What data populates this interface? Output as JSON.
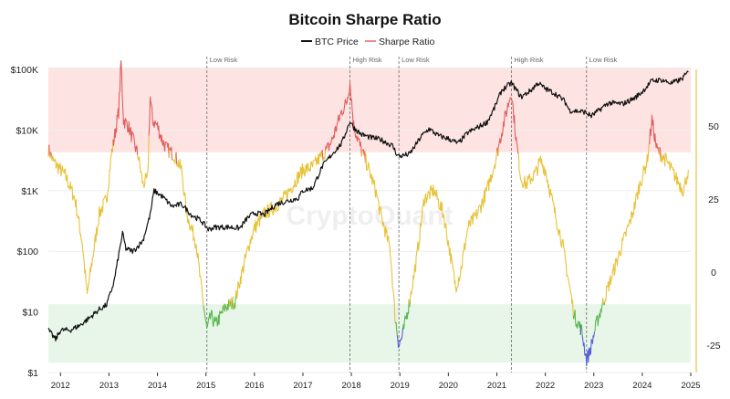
{
  "chart_data": {
    "type": "line",
    "title": "Bitcoin Sharpe Ratio",
    "watermark": "CryptoQuant",
    "legend": [
      {
        "name": "BTC Price",
        "color": "#111111"
      },
      {
        "name": "Sharpe Ratio",
        "color": "#ec8e8e"
      }
    ],
    "x_ticks": [
      "2012",
      "2013",
      "2014",
      "2015",
      "2016",
      "2017",
      "2018",
      "2019",
      "2020",
      "2021",
      "2022",
      "2023",
      "2024",
      "2025"
    ],
    "y_left": {
      "scale": "log",
      "range": [
        1,
        100000
      ],
      "ticks": [
        {
          "value": 1,
          "label": "$1"
        },
        {
          "value": 10,
          "label": "$10"
        },
        {
          "value": 100,
          "label": "$100"
        },
        {
          "value": 1000,
          "label": "$1K"
        },
        {
          "value": 10000,
          "label": "$10K"
        },
        {
          "value": 100000,
          "label": "$100K"
        }
      ]
    },
    "y_right": {
      "scale": "linear",
      "range": [
        -32,
        70
      ],
      "ticks": [
        {
          "value": 50,
          "label": "50"
        },
        {
          "value": 25,
          "label": "25"
        },
        {
          "value": 0,
          "label": "0"
        },
        {
          "value": -25,
          "label": "-25"
        }
      ]
    },
    "zones": {
      "high_risk": {
        "from": 41,
        "to": 70,
        "color": "#fde4e2"
      },
      "low_risk": {
        "from": -31,
        "to": -11,
        "color": "#e8f6ea"
      }
    },
    "line_colors": {
      "price": "#111111",
      "high": "#e05d5d",
      "mid": "#e8c238",
      "low": "#5bb84f",
      "extreme": "#5660d6"
    },
    "annotations": [
      {
        "x": 2015.02,
        "label": "Low Risk"
      },
      {
        "x": 2017.97,
        "label": "High Risk"
      },
      {
        "x": 2018.98,
        "label": "Low Risk"
      },
      {
        "x": 2021.3,
        "label": "High Risk"
      },
      {
        "x": 2022.85,
        "label": "Low Risk"
      }
    ],
    "series": [
      {
        "name": "BTC Price",
        "x": [
          2011.75,
          2011.9,
          2012.0,
          2012.2,
          2012.4,
          2012.6,
          2012.8,
          2012.95,
          2013.1,
          2013.28,
          2013.35,
          2013.5,
          2013.7,
          2013.85,
          2013.93,
          2014.1,
          2014.3,
          2014.5,
          2014.7,
          2014.9,
          2015.05,
          2015.2,
          2015.5,
          2015.7,
          2015.85,
          2016.0,
          2016.2,
          2016.45,
          2016.6,
          2016.9,
          2017.0,
          2017.2,
          2017.4,
          2017.6,
          2017.8,
          2017.97,
          2018.05,
          2018.2,
          2018.4,
          2018.6,
          2018.85,
          2018.95,
          2019.0,
          2019.2,
          2019.45,
          2019.6,
          2019.8,
          2020.0,
          2020.2,
          2020.4,
          2020.6,
          2020.8,
          2020.95,
          2021.1,
          2021.3,
          2021.5,
          2021.7,
          2021.85,
          2022.0,
          2022.2,
          2022.4,
          2022.5,
          2022.8,
          2022.95,
          2023.1,
          2023.3,
          2023.6,
          2023.85,
          2024.0,
          2024.2,
          2024.4,
          2024.6,
          2024.8,
          2024.95
        ],
        "y": [
          5,
          3.5,
          5,
          5,
          6,
          8,
          11,
          13,
          30,
          200,
          110,
          100,
          150,
          400,
          1000,
          800,
          550,
          600,
          400,
          320,
          230,
          250,
          250,
          240,
          350,
          430,
          400,
          600,
          650,
          750,
          1000,
          1100,
          2500,
          4000,
          6000,
          14000,
          11000,
          8500,
          7500,
          7000,
          5500,
          3800,
          3700,
          4000,
          8000,
          10500,
          8000,
          7200,
          6000,
          9000,
          11000,
          13500,
          23000,
          45000,
          60000,
          35000,
          45000,
          60000,
          48000,
          40000,
          30000,
          21000,
          20000,
          17000,
          21000,
          28000,
          27000,
          34000,
          43000,
          65000,
          67000,
          59000,
          68000,
          90000
        ]
      },
      {
        "name": "Sharpe Ratio",
        "x": [
          2011.75,
          2011.85,
          2012.0,
          2012.1,
          2012.3,
          2012.45,
          2012.55,
          2012.6,
          2012.8,
          2012.95,
          2013.05,
          2013.2,
          2013.25,
          2013.3,
          2013.4,
          2013.5,
          2013.6,
          2013.7,
          2013.8,
          2013.85,
          2013.9,
          2014.0,
          2014.1,
          2014.2,
          2014.35,
          2014.5,
          2014.6,
          2014.8,
          2014.9,
          2014.98,
          2015.02,
          2015.1,
          2015.2,
          2015.4,
          2015.6,
          2015.7,
          2015.9,
          2016.0,
          2016.2,
          2016.4,
          2016.6,
          2016.8,
          2017.0,
          2017.2,
          2017.4,
          2017.5,
          2017.6,
          2017.8,
          2017.9,
          2017.97,
          2018.05,
          2018.2,
          2018.3,
          2018.5,
          2018.6,
          2018.8,
          2018.9,
          2018.98,
          2019.05,
          2019.2,
          2019.35,
          2019.5,
          2019.7,
          2019.9,
          2020.0,
          2020.15,
          2020.25,
          2020.4,
          2020.6,
          2020.8,
          2021.0,
          2021.1,
          2021.2,
          2021.3,
          2021.4,
          2021.5,
          2021.6,
          2021.8,
          2021.9,
          2022.0,
          2022.2,
          2022.35,
          2022.5,
          2022.6,
          2022.75,
          2022.85,
          2022.9,
          2022.95,
          2023.05,
          2023.2,
          2023.3,
          2023.4,
          2023.6,
          2023.7,
          2023.8,
          2023.95,
          2024.1,
          2024.2,
          2024.3,
          2024.5,
          2024.7,
          2024.85,
          2024.95
        ],
        "y": [
          42,
          38,
          35,
          33,
          25,
          10,
          -8,
          -2,
          20,
          25,
          40,
          55,
          72,
          52,
          50,
          45,
          40,
          30,
          32,
          60,
          52,
          50,
          45,
          42,
          40,
          35,
          20,
          10,
          -5,
          -15,
          -20,
          -15,
          -18,
          -12,
          -10,
          -3,
          10,
          15,
          20,
          22,
          25,
          30,
          35,
          36,
          40,
          42,
          45,
          55,
          58,
          65,
          50,
          42,
          38,
          28,
          20,
          8,
          -15,
          -25,
          -22,
          -10,
          5,
          25,
          28,
          20,
          10,
          -5,
          0,
          15,
          20,
          28,
          40,
          48,
          55,
          62,
          45,
          32,
          30,
          34,
          38,
          35,
          20,
          10,
          -5,
          -15,
          -20,
          -30,
          -28,
          -25,
          -18,
          -10,
          -5,
          0,
          10,
          15,
          20,
          30,
          38,
          52,
          42,
          38,
          32,
          28,
          35
        ]
      }
    ]
  }
}
